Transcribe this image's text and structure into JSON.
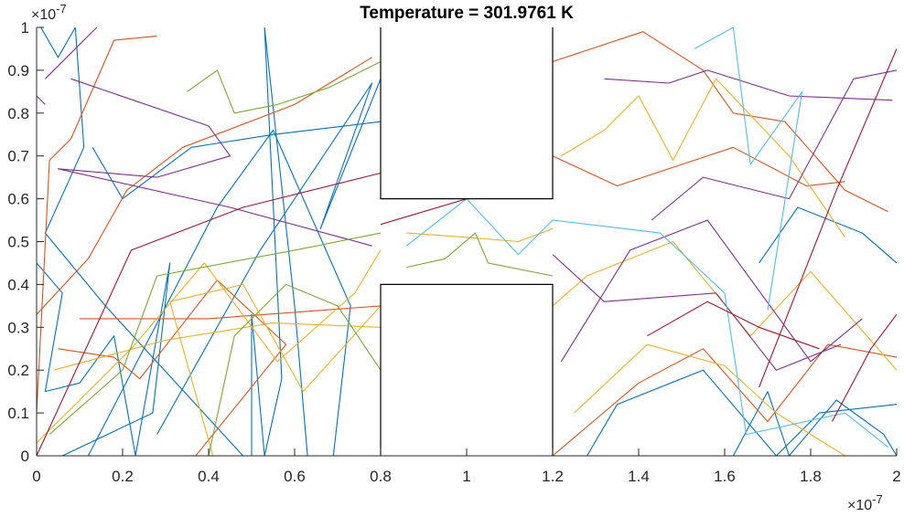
{
  "chart_data": {
    "type": "line",
    "title": "Temperature = 301.9761 K",
    "xlim": [
      0,
      2e-07
    ],
    "ylim": [
      0,
      1e-07
    ],
    "x_ticks": [
      0,
      2e-08,
      4e-08,
      6e-08,
      8e-08,
      1e-07,
      1.2e-07,
      1.4e-07,
      1.6e-07,
      1.8e-07,
      2e-07
    ],
    "x_tick_labels": [
      "0",
      "0.2",
      "0.4",
      "0.6",
      "0.8",
      "1",
      "1.2",
      "1.4",
      "1.6",
      "1.8",
      "2"
    ],
    "y_ticks": [
      0,
      1e-08,
      2e-08,
      3e-08,
      4e-08,
      5e-08,
      6e-08,
      7e-08,
      8e-08,
      9e-08,
      1e-07
    ],
    "y_tick_labels": [
      "0",
      "0.1",
      "0.2",
      "0.3",
      "0.4",
      "0.5",
      "0.6",
      "0.7",
      "0.8",
      "0.9",
      "1"
    ],
    "x_exponent": "-7",
    "y_exponent": "-7",
    "exponent_base": "×10",
    "grid": false,
    "colors": [
      "#0072BD",
      "#D95319",
      "#EDB120",
      "#7E2F8E",
      "#77AC30",
      "#4DBEEE",
      "#A2142F"
    ],
    "boxes": [
      {
        "name": "top-box",
        "path": [
          [
            8e-08,
            1e-07
          ],
          [
            8e-08,
            6e-08
          ],
          [
            1.2e-07,
            6e-08
          ],
          [
            1.2e-07,
            1e-07
          ]
        ]
      },
      {
        "name": "bottom-box",
        "path": [
          [
            8e-08,
            0
          ],
          [
            8e-08,
            4e-08
          ],
          [
            1.2e-07,
            4e-08
          ],
          [
            1.2e-07,
            0
          ]
        ]
      }
    ],
    "series": [
      {
        "color_index": 0,
        "points": [
          [
            0.0,
            4.5e-08
          ],
          [
            6e-09,
            3.8e-08
          ],
          [
            2e-09,
            1.5e-08
          ],
          [
            1e-08,
            1.7e-08
          ],
          [
            1.8e-08,
            2.8e-08
          ],
          [
            2.3e-08,
            0.0
          ],
          [
            3.1e-08,
            4.5e-08
          ],
          [
            2.7e-08,
            1e-08
          ],
          [
            6e-09,
            0.0
          ]
        ]
      },
      {
        "color_index": 0,
        "points": [
          [
            1e-09,
            1e-07
          ],
          [
            5e-09,
            9.3e-08
          ],
          [
            9e-09,
            1e-07
          ],
          [
            1.1e-08,
            7.2e-08
          ],
          [
            2e-09,
            5.2e-08
          ],
          [
            1.6e-08,
            3.5e-08
          ],
          [
            4.8e-08,
            0.0
          ]
        ]
      },
      {
        "color_index": 0,
        "points": [
          [
            1.2e-08,
            0.0
          ],
          [
            4.2e-08,
            5.8e-08
          ],
          [
            5.5e-08,
            7.6e-08
          ],
          [
            7.3e-08,
            3.5e-08
          ],
          [
            6.9e-08,
            0.0
          ]
        ]
      },
      {
        "color_index": 0,
        "points": [
          [
            2.8e-08,
            5e-09
          ],
          [
            5.2e-08,
            4.8e-08
          ],
          [
            7.8e-08,
            8.7e-08
          ],
          [
            6.6e-08,
            5.3e-08
          ],
          [
            8e-08,
            8.8e-08
          ]
        ]
      },
      {
        "color_index": 0,
        "points": [
          [
            5e-08,
            0.0
          ],
          [
            5e-08,
            3.3e-08
          ],
          [
            5.3e-08,
            0.0
          ],
          [
            5.7e-08,
            1.8e-08
          ],
          [
            5.3e-08,
            1e-07
          ],
          [
            6e-08,
            3.5e-08
          ],
          [
            6.3e-08,
            0.0
          ]
        ]
      },
      {
        "color_index": 0,
        "points": [
          [
            1.3e-08,
            7.2e-08
          ],
          [
            2e-08,
            6e-08
          ],
          [
            3.6e-08,
            7.2e-08
          ],
          [
            5.5e-08,
            7.5e-08
          ],
          [
            8e-08,
            7.8e-08
          ]
        ]
      },
      {
        "color_index": 0,
        "points": [
          [
            1.28e-07,
            0.0
          ],
          [
            1.35e-07,
            1.2e-08
          ],
          [
            1.55e-07,
            2e-08
          ],
          [
            1.72e-07,
            0.0
          ],
          [
            1.82e-07,
            1e-08
          ],
          [
            2e-07,
            1.2e-08
          ]
        ]
      },
      {
        "color_index": 0,
        "points": [
          [
            1.62e-07,
            0.0
          ],
          [
            1.7e-07,
            1.5e-08
          ],
          [
            1.75e-07,
            0.0
          ],
          [
            1.86e-07,
            1.3e-08
          ],
          [
            1.97e-07,
            5e-09
          ],
          [
            2e-07,
            0.0
          ]
        ]
      },
      {
        "color_index": 0,
        "points": [
          [
            1.68e-07,
            4.5e-08
          ],
          [
            1.77e-07,
            5.8e-08
          ],
          [
            1.92e-07,
            5.2e-08
          ],
          [
            2e-07,
            4.5e-08
          ]
        ]
      },
      {
        "color_index": 1,
        "points": [
          [
            0.0,
            3.3e-08
          ],
          [
            1.2e-08,
            4.6e-08
          ],
          [
            2.1e-08,
            6.2e-08
          ],
          [
            3.4e-08,
            7.2e-08
          ],
          [
            6e-08,
            8.2e-08
          ],
          [
            7.8e-08,
            9.3e-08
          ]
        ]
      },
      {
        "color_index": 1,
        "points": [
          [
            0.0,
            1e-08
          ],
          [
            3e-09,
            6.9e-08
          ],
          [
            8e-09,
            7.4e-08
          ],
          [
            1.8e-08,
            9.7e-08
          ],
          [
            2.8e-08,
            9.8e-08
          ]
        ]
      },
      {
        "color_index": 1,
        "points": [
          [
            5e-09,
            2.5e-08
          ],
          [
            1.8e-08,
            2.3e-08
          ],
          [
            2.4e-08,
            1.8e-08
          ],
          [
            4.2e-08,
            4.1e-08
          ],
          [
            5.8e-08,
            2.6e-08
          ],
          [
            3.7e-08,
            0.0
          ]
        ]
      },
      {
        "color_index": 1,
        "points": [
          [
            1e-08,
            3.2e-08
          ],
          [
            4e-08,
            3.2e-08
          ],
          [
            8e-08,
            3.5e-08
          ]
        ]
      },
      {
        "color_index": 1,
        "points": [
          [
            1.2e-07,
            9.2e-08
          ],
          [
            1.41e-07,
            9.9e-08
          ],
          [
            1.55e-07,
            9e-08
          ],
          [
            1.62e-07,
            8e-08
          ],
          [
            1.74e-07,
            7.8e-08
          ],
          [
            1.88e-07,
            6.2e-08
          ],
          [
            1.98e-07,
            5.7e-08
          ]
        ]
      },
      {
        "color_index": 1,
        "points": [
          [
            1.2e-07,
            0.0
          ],
          [
            1.4e-07,
            1.7e-08
          ],
          [
            1.55e-07,
            2.5e-08
          ],
          [
            1.7e-07,
            8e-09
          ],
          [
            1.84e-07,
            2.6e-08
          ],
          [
            2e-07,
            2.3e-08
          ]
        ]
      },
      {
        "color_index": 1,
        "points": [
          [
            1.2e-07,
            7e-08
          ],
          [
            1.35e-07,
            6.3e-08
          ],
          [
            1.62e-07,
            7.2e-08
          ],
          [
            1.79e-07,
            6.3e-08
          ],
          [
            1.88e-07,
            6.4e-08
          ]
        ]
      },
      {
        "color_index": 2,
        "points": [
          [
            0.0,
            3e-09
          ],
          [
            2.2e-08,
            2.5e-08
          ],
          [
            3.9e-08,
            4.5e-08
          ],
          [
            5.6e-08,
            2.2e-08
          ],
          [
            7.4e-08,
            3.8e-08
          ],
          [
            8e-08,
            4.8e-08
          ]
        ]
      },
      {
        "color_index": 2,
        "points": [
          [
            4e-09,
            2e-08
          ],
          [
            3e-08,
            2.7e-08
          ],
          [
            5.5e-08,
            3.1e-08
          ],
          [
            8e-08,
            3e-08
          ]
        ]
      },
      {
        "color_index": 2,
        "points": [
          [
            4.1e-08,
            0.0
          ],
          [
            3.1e-08,
            3.6e-08
          ],
          [
            4.8e-08,
            4e-08
          ],
          [
            6.2e-08,
            1.5e-08
          ],
          [
            8e-08,
            3.5e-08
          ]
        ]
      },
      {
        "color_index": 2,
        "points": [
          [
            1.2e-07,
            3.5e-08
          ],
          [
            1.28e-07,
            4.2e-08
          ],
          [
            1.48e-07,
            5e-08
          ],
          [
            1.66e-07,
            2.8e-08
          ],
          [
            1.8e-07,
            4.3e-08
          ],
          [
            2e-07,
            2e-08
          ]
        ]
      },
      {
        "color_index": 2,
        "points": [
          [
            1.22e-07,
            7e-08
          ],
          [
            1.32e-07,
            7.6e-08
          ],
          [
            1.4e-07,
            8.4e-08
          ],
          [
            1.48e-07,
            6.9e-08
          ],
          [
            1.58e-07,
            8.8e-08
          ],
          [
            1.75e-07,
            7e-08
          ],
          [
            1.88e-07,
            5.1e-08
          ]
        ]
      },
      {
        "color_index": 2,
        "points": [
          [
            1.25e-07,
            1e-08
          ],
          [
            1.42e-07,
            2.6e-08
          ],
          [
            1.6e-07,
            2.1e-08
          ],
          [
            1.72e-07,
            1e-08
          ],
          [
            1.88e-07,
            0.0
          ]
        ]
      },
      {
        "color_index": 2,
        "points": [
          [
            8.6e-08,
            5.2e-08
          ],
          [
            1e-07,
            5.1e-08
          ],
          [
            1.12e-07,
            5e-08
          ],
          [
            1.2e-07,
            5.3e-08
          ]
        ]
      },
      {
        "color_index": 3,
        "points": [
          [
            2e-09,
            8.8e-08
          ],
          [
            1.4e-08,
            1e-07
          ]
        ]
      },
      {
        "color_index": 3,
        "points": [
          [
            0.0,
            8.4e-08
          ],
          [
            2e-09,
            8.2e-08
          ]
        ]
      },
      {
        "color_index": 3,
        "points": [
          [
            8e-09,
            8.8e-08
          ],
          [
            4e-08,
            7.7e-08
          ],
          [
            4.5e-08,
            7e-08
          ],
          [
            2.8e-08,
            6.5e-08
          ],
          [
            5e-09,
            6.7e-08
          ],
          [
            4.5e-08,
            5.8e-08
          ],
          [
            7.8e-08,
            4.9e-08
          ]
        ]
      },
      {
        "color_index": 3,
        "points": [
          [
            1.2e-07,
            4.7e-08
          ],
          [
            1.32e-07,
            3.6e-08
          ],
          [
            1.58e-07,
            3.8e-08
          ],
          [
            1.72e-07,
            2e-08
          ],
          [
            1.87e-07,
            2.6e-08
          ]
        ]
      },
      {
        "color_index": 3,
        "points": [
          [
            1.32e-07,
            8.8e-08
          ],
          [
            1.47e-07,
            8.7e-08
          ],
          [
            1.56e-07,
            9e-08
          ],
          [
            1.75e-07,
            8.4e-08
          ],
          [
            1.99e-07,
            8.3e-08
          ]
        ]
      },
      {
        "color_index": 3,
        "points": [
          [
            1.43e-07,
            5.5e-08
          ],
          [
            1.55e-07,
            6.5e-08
          ],
          [
            1.75e-07,
            6e-08
          ],
          [
            1.9e-07,
            8.8e-08
          ],
          [
            2e-07,
            9e-08
          ]
        ]
      },
      {
        "color_index": 3,
        "points": [
          [
            1.22e-07,
            2.2e-08
          ],
          [
            1.38e-07,
            4.8e-08
          ],
          [
            1.56e-07,
            5.5e-08
          ],
          [
            1.8e-07,
            2.2e-08
          ],
          [
            1.92e-07,
            3.2e-08
          ]
        ]
      },
      {
        "color_index": 4,
        "points": [
          [
            3e-09,
            5e-09
          ],
          [
            2e-08,
            2e-08
          ],
          [
            2.8e-08,
            4.2e-08
          ],
          [
            6e-08,
            4.8e-08
          ],
          [
            8e-08,
            5.2e-08
          ]
        ]
      },
      {
        "color_index": 4,
        "points": [
          [
            3.5e-08,
            8.5e-08
          ],
          [
            4.2e-08,
            9e-08
          ],
          [
            4.6e-08,
            8e-08
          ],
          [
            5.6e-08,
            8.2e-08
          ],
          [
            6.8e-08,
            8.6e-08
          ],
          [
            8e-08,
            9.2e-08
          ]
        ]
      },
      {
        "color_index": 4,
        "points": [
          [
            4e-08,
            0.0
          ],
          [
            4.6e-08,
            2.8e-08
          ],
          [
            5.8e-08,
            4e-08
          ],
          [
            7e-08,
            3.5e-08
          ],
          [
            8e-08,
            2e-08
          ]
        ]
      },
      {
        "color_index": 4,
        "points": [
          [
            8.6e-08,
            4.4e-08
          ],
          [
            9.5e-08,
            4.6e-08
          ],
          [
            1.02e-07,
            5.2e-08
          ],
          [
            1.05e-07,
            4.5e-08
          ],
          [
            1.2e-07,
            4.2e-08
          ]
        ]
      },
      {
        "color_index": 5,
        "points": [
          [
            8.6e-08,
            4.9e-08
          ],
          [
            1e-07,
            6e-08
          ],
          [
            1.12e-07,
            4.7e-08
          ],
          [
            1.2e-07,
            5.5e-08
          ],
          [
            1.45e-07,
            5.2e-08
          ],
          [
            1.6e-07,
            3.8e-08
          ],
          [
            1.65e-07,
            5e-09
          ],
          [
            1.88e-07,
            1e-08
          ],
          [
            1.98e-07,
            2e-09
          ]
        ]
      },
      {
        "color_index": 5,
        "points": [
          [
            1.53e-07,
            9.5e-08
          ],
          [
            1.62e-07,
            1e-07
          ],
          [
            1.66e-07,
            6.8e-08
          ],
          [
            1.78e-07,
            8.5e-08
          ],
          [
            1.7e-07,
            3.4e-08
          ]
        ]
      },
      {
        "color_index": 6,
        "points": [
          [
            0.0,
            0.0
          ],
          [
            2.2e-08,
            4.8e-08
          ],
          [
            4.8e-08,
            5.8e-08
          ],
          [
            8e-08,
            6.6e-08
          ]
        ]
      },
      {
        "color_index": 6,
        "points": [
          [
            8e-08,
            5.4e-08
          ],
          [
            1e-07,
            6e-08
          ],
          [
            1.2e-07,
            6.4e-08
          ]
        ]
      },
      {
        "color_index": 6,
        "points": [
          [
            1.42e-07,
            2.8e-08
          ],
          [
            1.56e-07,
            3.6e-08
          ],
          [
            1.68e-07,
            3e-08
          ],
          [
            1.82e-07,
            2.5e-08
          ]
        ]
      },
      {
        "color_index": 6,
        "points": [
          [
            1.68e-07,
            1.6e-08
          ],
          [
            1.86e-07,
            6.2e-08
          ],
          [
            2e-07,
            9.5e-08
          ]
        ]
      },
      {
        "color_index": 6,
        "points": [
          [
            1.85e-07,
            8e-09
          ],
          [
            1.94e-07,
            2.5e-08
          ],
          [
            2e-07,
            3.3e-08
          ]
        ]
      }
    ]
  }
}
